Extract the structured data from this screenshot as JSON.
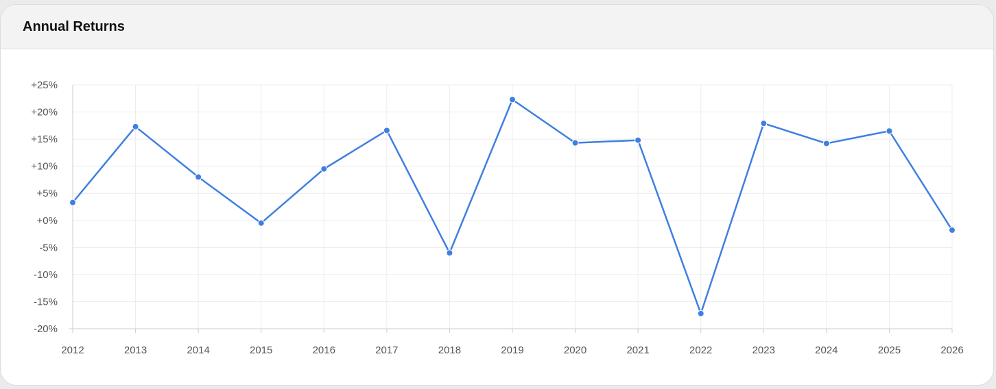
{
  "card": {
    "title": "Annual Returns"
  },
  "chart_data": {
    "type": "line",
    "title": "Annual Returns",
    "xlabel": "",
    "ylabel": "",
    "x": [
      "2012",
      "2013",
      "2014",
      "2015",
      "2016",
      "2017",
      "2018",
      "2019",
      "2020",
      "2021",
      "2022",
      "2023",
      "2024",
      "2025",
      "2026"
    ],
    "series": [
      {
        "values": [
          3.3,
          17.3,
          8.0,
          -0.5,
          9.5,
          16.6,
          -6.0,
          22.3,
          14.3,
          14.8,
          -17.2,
          17.9,
          14.2,
          16.5,
          -1.8
        ]
      }
    ],
    "ylim": [
      -20,
      25
    ],
    "yticks": [
      25,
      20,
      15,
      10,
      5,
      0,
      -5,
      -10,
      -15,
      -20
    ],
    "ytick_labels": [
      "+25%",
      "+20%",
      "+15%",
      "+10%",
      "+5%",
      "+0%",
      "-5%",
      "-10%",
      "-15%",
      "-20%"
    ],
    "grid": true,
    "legend": "none",
    "colors": {
      "line": "#3f7fe0",
      "grid": "#ececec",
      "axis": "#cccccc"
    }
  }
}
